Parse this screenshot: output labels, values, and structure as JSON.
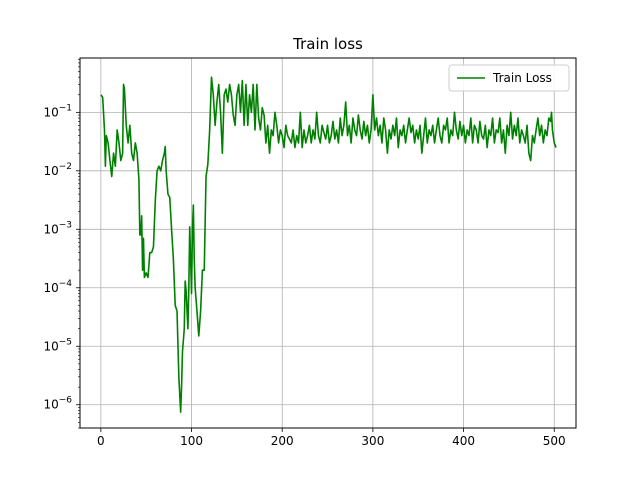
{
  "chart_data": {
    "type": "line",
    "title": "Train loss",
    "xlabel": "",
    "ylabel": "",
    "xlim": [
      -23,
      524
    ],
    "ylim": [
      4e-07,
      0.85
    ],
    "yscale": "log",
    "grid": true,
    "legend_position": "top-right",
    "xticks": [
      0,
      100,
      200,
      300,
      400,
      500
    ],
    "xtick_labels": [
      "0",
      "100",
      "200",
      "300",
      "400",
      "500"
    ],
    "yticks": [
      1e-06,
      1e-05,
      0.0001,
      0.001,
      0.01,
      0.1
    ],
    "ytick_labels": [
      {
        "base": "10",
        "exp": "−6"
      },
      {
        "base": "10",
        "exp": "−5"
      },
      {
        "base": "10",
        "exp": "−4"
      },
      {
        "base": "10",
        "exp": "−3"
      },
      {
        "base": "10",
        "exp": "−2"
      },
      {
        "base": "10",
        "exp": "−1"
      }
    ],
    "series": [
      {
        "name": "Train Loss",
        "color": "#008000",
        "points": [
          [
            0,
            0.2
          ],
          [
            2,
            0.18
          ],
          [
            4,
            0.05
          ],
          [
            5,
            0.012
          ],
          [
            6,
            0.04
          ],
          [
            8,
            0.03
          ],
          [
            10,
            0.015
          ],
          [
            12,
            0.008
          ],
          [
            14,
            0.02
          ],
          [
            16,
            0.012
          ],
          [
            18,
            0.05
          ],
          [
            20,
            0.03
          ],
          [
            22,
            0.015
          ],
          [
            24,
            0.02
          ],
          [
            25,
            0.3
          ],
          [
            26,
            0.25
          ],
          [
            28,
            0.06
          ],
          [
            30,
            0.03
          ],
          [
            32,
            0.06
          ],
          [
            34,
            0.02
          ],
          [
            36,
            0.015
          ],
          [
            38,
            0.03
          ],
          [
            40,
            0.02
          ],
          [
            42,
            0.007
          ],
          [
            43,
            0.0008
          ],
          [
            44,
            0.0008
          ],
          [
            45,
            0.0017
          ],
          [
            46,
            0.0002
          ],
          [
            47,
            0.0007
          ],
          [
            48,
            0.00015
          ],
          [
            50,
            0.00018
          ],
          [
            52,
            0.00015
          ],
          [
            54,
            0.0004
          ],
          [
            56,
            0.0004
          ],
          [
            58,
            0.0005
          ],
          [
            60,
            0.003
          ],
          [
            62,
            0.01
          ],
          [
            64,
            0.012
          ],
          [
            66,
            0.01
          ],
          [
            68,
            0.015
          ],
          [
            70,
            0.02
          ],
          [
            71,
            0.026
          ],
          [
            72,
            0.01
          ],
          [
            74,
            0.004
          ],
          [
            76,
            0.0035
          ],
          [
            78,
            0.001
          ],
          [
            80,
            0.0003
          ],
          [
            82,
            5e-05
          ],
          [
            84,
            4e-05
          ],
          [
            86,
            3e-06
          ],
          [
            88,
            7.5e-07
          ],
          [
            89,
            2e-06
          ],
          [
            90,
            8e-06
          ],
          [
            92,
            2e-05
          ],
          [
            93,
            0.00013
          ],
          [
            94,
            9e-05
          ],
          [
            96,
            2e-05
          ],
          [
            97,
            0.0001
          ],
          [
            98,
            0.0011
          ],
          [
            99,
            0.0003
          ],
          [
            100,
            8e-05
          ],
          [
            101,
            0.001
          ],
          [
            102,
            0.0026
          ],
          [
            103,
            0.0003
          ],
          [
            104,
            0.0001
          ],
          [
            106,
            4e-05
          ],
          [
            108,
            1.5e-05
          ],
          [
            110,
            4e-05
          ],
          [
            112,
            0.0002
          ],
          [
            114,
            0.0002
          ],
          [
            116,
            0.008
          ],
          [
            118,
            0.013
          ],
          [
            120,
            0.05
          ],
          [
            122,
            0.4
          ],
          [
            124,
            0.2
          ],
          [
            126,
            0.06
          ],
          [
            128,
            0.15
          ],
          [
            130,
            0.3
          ],
          [
            132,
            0.1
          ],
          [
            134,
            0.02
          ],
          [
            136,
            0.2
          ],
          [
            138,
            0.25
          ],
          [
            140,
            0.15
          ],
          [
            142,
            0.3
          ],
          [
            144,
            0.2
          ],
          [
            146,
            0.09
          ],
          [
            148,
            0.06
          ],
          [
            150,
            0.2
          ],
          [
            152,
            0.3
          ],
          [
            154,
            0.1
          ],
          [
            156,
            0.35
          ],
          [
            158,
            0.06
          ],
          [
            160,
            0.3
          ],
          [
            162,
            0.06
          ],
          [
            164,
            0.2
          ],
          [
            166,
            0.1
          ],
          [
            168,
            0.3
          ],
          [
            170,
            0.05
          ],
          [
            172,
            0.3
          ],
          [
            174,
            0.08
          ],
          [
            176,
            0.05
          ],
          [
            178,
            0.12
          ],
          [
            180,
            0.09
          ],
          [
            182,
            0.03
          ],
          [
            184,
            0.06
          ],
          [
            186,
            0.02
          ],
          [
            188,
            0.05
          ],
          [
            190,
            0.04
          ],
          [
            192,
            0.1
          ],
          [
            194,
            0.06
          ],
          [
            196,
            0.03
          ],
          [
            198,
            0.05
          ],
          [
            200,
            0.04
          ],
          [
            202,
            0.025
          ],
          [
            204,
            0.06
          ],
          [
            206,
            0.04
          ],
          [
            208,
            0.035
          ],
          [
            210,
            0.03
          ],
          [
            212,
            0.05
          ],
          [
            214,
            0.025
          ],
          [
            216,
            0.04
          ],
          [
            218,
            0.03
          ],
          [
            220,
            0.1
          ],
          [
            222,
            0.025
          ],
          [
            224,
            0.05
          ],
          [
            226,
            0.03
          ],
          [
            228,
            0.04
          ],
          [
            230,
            0.06
          ],
          [
            232,
            0.03
          ],
          [
            234,
            0.05
          ],
          [
            236,
            0.035
          ],
          [
            238,
            0.1
          ],
          [
            240,
            0.04
          ],
          [
            242,
            0.03
          ],
          [
            244,
            0.06
          ],
          [
            246,
            0.045
          ],
          [
            248,
            0.035
          ],
          [
            250,
            0.06
          ],
          [
            252,
            0.03
          ],
          [
            254,
            0.04
          ],
          [
            256,
            0.07
          ],
          [
            258,
            0.035
          ],
          [
            260,
            0.05
          ],
          [
            262,
            0.03
          ],
          [
            264,
            0.08
          ],
          [
            266,
            0.04
          ],
          [
            268,
            0.06
          ],
          [
            270,
            0.15
          ],
          [
            272,
            0.04
          ],
          [
            274,
            0.06
          ],
          [
            276,
            0.03
          ],
          [
            278,
            0.08
          ],
          [
            280,
            0.05
          ],
          [
            282,
            0.04
          ],
          [
            284,
            0.09
          ],
          [
            286,
            0.05
          ],
          [
            288,
            0.035
          ],
          [
            290,
            0.07
          ],
          [
            292,
            0.04
          ],
          [
            294,
            0.06
          ],
          [
            296,
            0.03
          ],
          [
            298,
            0.05
          ],
          [
            300,
            0.2
          ],
          [
            302,
            0.05
          ],
          [
            304,
            0.08
          ],
          [
            306,
            0.04
          ],
          [
            308,
            0.06
          ],
          [
            310,
            0.03
          ],
          [
            312,
            0.08
          ],
          [
            314,
            0.05
          ],
          [
            316,
            0.02
          ],
          [
            318,
            0.05
          ],
          [
            320,
            0.035
          ],
          [
            322,
            0.06
          ],
          [
            324,
            0.04
          ],
          [
            326,
            0.08
          ],
          [
            328,
            0.025
          ],
          [
            330,
            0.05
          ],
          [
            332,
            0.04
          ],
          [
            334,
            0.06
          ],
          [
            336,
            0.03
          ],
          [
            338,
            0.05
          ],
          [
            340,
            0.08
          ],
          [
            342,
            0.045
          ],
          [
            344,
            0.06
          ],
          [
            346,
            0.03
          ],
          [
            348,
            0.05
          ],
          [
            350,
            0.035
          ],
          [
            352,
            0.06
          ],
          [
            354,
            0.02
          ],
          [
            356,
            0.04
          ],
          [
            358,
            0.08
          ],
          [
            360,
            0.03
          ],
          [
            362,
            0.05
          ],
          [
            364,
            0.04
          ],
          [
            366,
            0.06
          ],
          [
            368,
            0.03
          ],
          [
            370,
            0.05
          ],
          [
            372,
            0.08
          ],
          [
            374,
            0.04
          ],
          [
            376,
            0.03
          ],
          [
            378,
            0.06
          ],
          [
            380,
            0.05
          ],
          [
            382,
            0.08
          ],
          [
            384,
            0.03
          ],
          [
            386,
            0.05
          ],
          [
            388,
            0.04
          ],
          [
            390,
            0.1
          ],
          [
            392,
            0.05
          ],
          [
            394,
            0.035
          ],
          [
            396,
            0.07
          ],
          [
            398,
            0.04
          ],
          [
            400,
            0.06
          ],
          [
            402,
            0.03
          ],
          [
            404,
            0.05
          ],
          [
            406,
            0.04
          ],
          [
            408,
            0.08
          ],
          [
            410,
            0.03
          ],
          [
            412,
            0.06
          ],
          [
            414,
            0.05
          ],
          [
            416,
            0.03
          ],
          [
            418,
            0.07
          ],
          [
            420,
            0.04
          ],
          [
            422,
            0.035
          ],
          [
            424,
            0.06
          ],
          [
            426,
            0.025
          ],
          [
            428,
            0.05
          ],
          [
            430,
            0.04
          ],
          [
            432,
            0.08
          ],
          [
            434,
            0.03
          ],
          [
            436,
            0.05
          ],
          [
            438,
            0.045
          ],
          [
            440,
            0.08
          ],
          [
            442,
            0.03
          ],
          [
            444,
            0.05
          ],
          [
            446,
            0.02
          ],
          [
            448,
            0.06
          ],
          [
            450,
            0.04
          ],
          [
            452,
            0.1
          ],
          [
            454,
            0.035
          ],
          [
            456,
            0.06
          ],
          [
            458,
            0.04
          ],
          [
            460,
            0.08
          ],
          [
            462,
            0.03
          ],
          [
            464,
            0.05
          ],
          [
            466,
            0.04
          ],
          [
            468,
            0.03
          ],
          [
            470,
            0.06
          ],
          [
            472,
            0.02
          ],
          [
            474,
            0.015
          ],
          [
            476,
            0.04
          ],
          [
            478,
            0.03
          ],
          [
            480,
            0.05
          ],
          [
            482,
            0.08
          ],
          [
            484,
            0.04
          ],
          [
            486,
            0.06
          ],
          [
            488,
            0.03
          ],
          [
            490,
            0.05
          ],
          [
            492,
            0.04
          ],
          [
            494,
            0.08
          ],
          [
            496,
            0.07
          ],
          [
            497,
            0.1
          ],
          [
            498,
            0.05
          ],
          [
            500,
            0.03
          ],
          [
            502,
            0.025
          ]
        ]
      }
    ]
  }
}
